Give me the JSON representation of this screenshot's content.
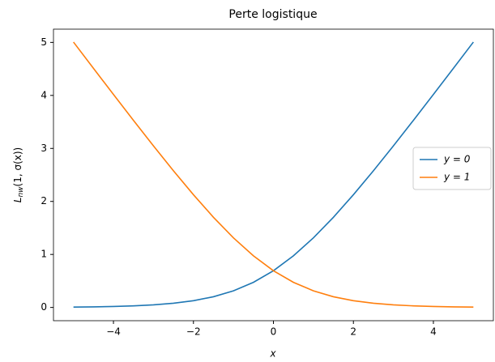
{
  "chart_data": {
    "type": "line",
    "title": "Perte logistique",
    "xlabel": "x",
    "ylabel": {
      "main": "L",
      "sub": "nw",
      "rest": "(1, σ(x))"
    },
    "x": [
      -5,
      -4.5,
      -4,
      -3.5,
      -3,
      -2.5,
      -2,
      -1.5,
      -1,
      -0.5,
      0,
      0.5,
      1,
      1.5,
      2,
      2.5,
      3,
      3.5,
      4,
      4.5,
      5
    ],
    "series": [
      {
        "name": "y = 0",
        "color": "#1f77b4",
        "values": [
          0.0067,
          0.011,
          0.0181,
          0.0298,
          0.0486,
          0.0789,
          0.1269,
          0.2014,
          0.3133,
          0.4741,
          0.6931,
          0.9741,
          1.3133,
          1.7014,
          2.1269,
          2.5789,
          3.0486,
          3.5298,
          4.0181,
          4.511,
          5.0067
        ]
      },
      {
        "name": "y = 1",
        "color": "#ff7f0e",
        "values": [
          5.0067,
          4.511,
          4.0181,
          3.5298,
          3.0486,
          2.5789,
          2.1269,
          1.7014,
          1.3133,
          0.9741,
          0.6931,
          0.4741,
          0.3133,
          0.2014,
          0.1269,
          0.0789,
          0.0486,
          0.0298,
          0.0181,
          0.011,
          0.0067
        ]
      }
    ],
    "xlim": [
      -5.5,
      5.5
    ],
    "ylim": [
      -0.25,
      5.25
    ],
    "xticks": [
      {
        "value": -4,
        "label": "−4"
      },
      {
        "value": -2,
        "label": "−2"
      },
      0,
      2,
      4
    ],
    "yticks": [
      0,
      1,
      2,
      3,
      4,
      5
    ],
    "grid": false,
    "legend": "right"
  }
}
